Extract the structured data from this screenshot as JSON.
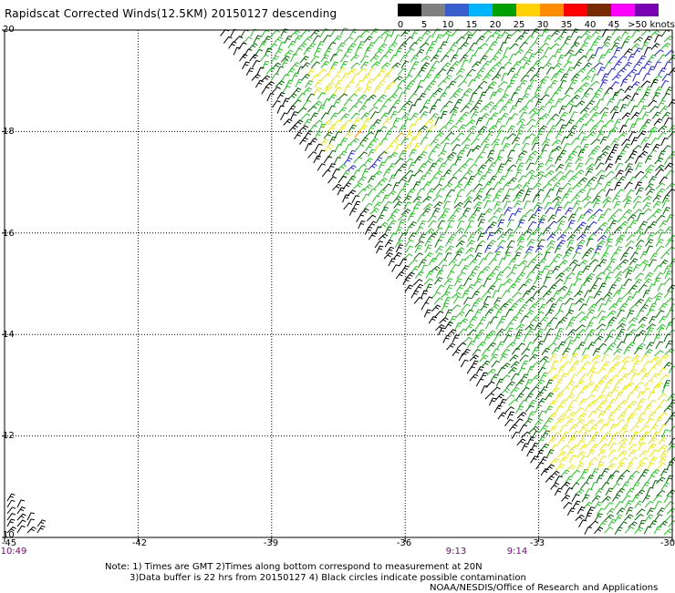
{
  "title": "Rapidscat Corrected Winds(12.5KM) 20150127 descending",
  "legend": {
    "labels": [
      "0",
      "5",
      "10",
      "15",
      "20",
      "25",
      "30",
      "35",
      "40",
      "45",
      ">50 knots"
    ],
    "colors": [
      "#000000",
      "#808080",
      "#3a5fcd",
      "#00b4ff",
      "#00a000",
      "#ffd200",
      "#ff8c00",
      "#ff0000",
      "#7a2a00",
      "#ff00ff",
      "#7a00b4"
    ]
  },
  "map": {
    "lon_min": -45,
    "lon_max": -30,
    "lat_min": 10,
    "lat_max": 20,
    "x_ticks": [
      "-45",
      "-42",
      "-39",
      "-36",
      "-33",
      "-30"
    ],
    "y_ticks": [
      "20",
      "18",
      "16",
      "14",
      "12",
      "10"
    ],
    "times": [
      "10:49",
      "9:13",
      "9:14"
    ],
    "wind_colors": {
      "calm": "#000000",
      "light": "#006400",
      "moderate": "#22c022",
      "fresh": "#e8e800",
      "strong": "#ff8c00",
      "blue": "#2020e0"
    }
  },
  "notes": {
    "line1": "Note: 1) Times are GMT 2)Times along bottom correspond to measurement at 20N",
    "line2": "3)Data buffer is 22 hrs from 20150127 4) Black circles indicate possible contamination",
    "line3": "NOAA/NESDIS/Office of Research and Applications"
  }
}
